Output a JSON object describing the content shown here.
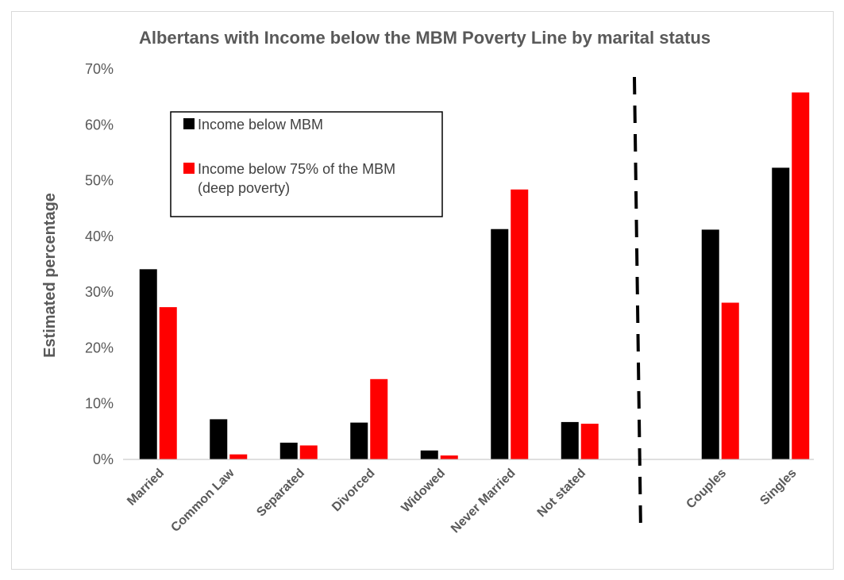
{
  "chart_data": {
    "type": "bar",
    "title": "Albertans with Income below the MBM Poverty Line by marital status",
    "xlabel": "",
    "ylabel": "Estimated percentage",
    "ylim": [
      0,
      70
    ],
    "y_ticks": [
      "0%",
      "10%",
      "20%",
      "30%",
      "40%",
      "50%",
      "60%",
      "70%"
    ],
    "categories": [
      "Married",
      "Common Law",
      "Separated",
      "Divorced",
      "Widowed",
      "Never Married",
      "Not stated",
      "Couples",
      "Singles"
    ],
    "series": [
      {
        "name": "Income below MBM",
        "color": "#000000",
        "values": [
          34.1,
          7.2,
          3.0,
          6.6,
          1.6,
          41.3,
          6.7,
          41.2,
          52.3
        ]
      },
      {
        "name": "Income below 75% of the MBM (deep poverty)",
        "color": "#ff0000",
        "values": [
          27.3,
          0.9,
          2.5,
          14.4,
          0.7,
          48.4,
          6.4,
          28.1,
          65.8
        ]
      }
    ],
    "legend_position": "top-left",
    "grid": false,
    "separator": "dashed vertical line between Not stated and Couples"
  }
}
